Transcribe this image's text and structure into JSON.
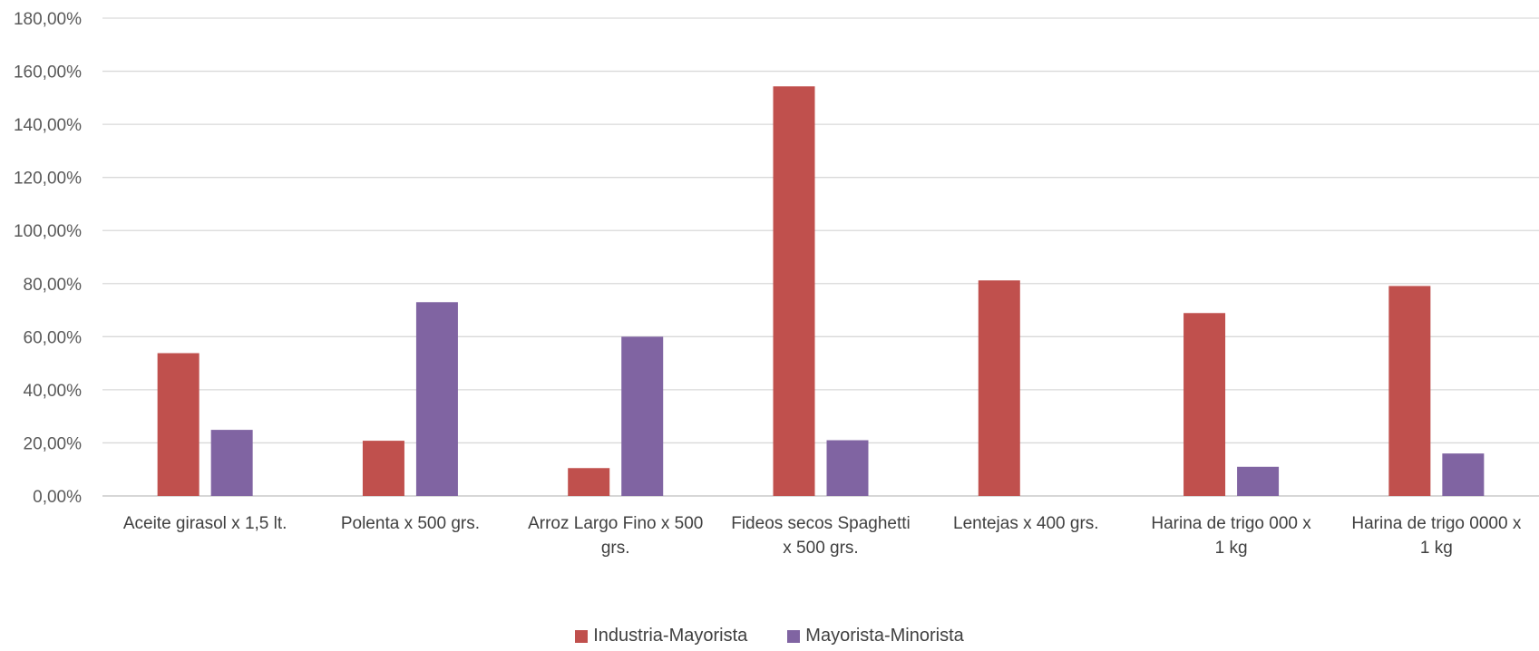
{
  "chart_data": {
    "type": "bar",
    "title": "",
    "xlabel": "",
    "ylabel": "",
    "ylim": [
      0,
      180
    ],
    "yticks": [
      "0,00%",
      "20,00%",
      "40,00%",
      "60,00%",
      "80,00%",
      "100,00%",
      "120,00%",
      "140,00%",
      "160,00%",
      "180,00%"
    ],
    "grid": true,
    "legend_position": "bottom",
    "categories": [
      [
        "Aceite girasol x 1,5 lt."
      ],
      [
        "Polenta x 500 grs."
      ],
      [
        "Arroz Largo Fino x 500",
        "grs."
      ],
      [
        "Fideos secos Spaghetti",
        "x 500 grs."
      ],
      [
        "Lentejas x 400 grs."
      ],
      [
        "Harina de trigo 000 x",
        "1 kg"
      ],
      [
        "Harina de trigo 0000 x",
        "1 kg"
      ]
    ],
    "series": [
      {
        "name": "Industria-Mayorista",
        "color": "#c0504d",
        "values": [
          53.8,
          20.8,
          10.5,
          154.3,
          81.2,
          68.9,
          79.1
        ]
      },
      {
        "name": "Mayorista-Minorista",
        "color": "#8064a2",
        "values": [
          24.9,
          73.0,
          60.0,
          21.0,
          null,
          11.0,
          16.0
        ]
      }
    ]
  }
}
